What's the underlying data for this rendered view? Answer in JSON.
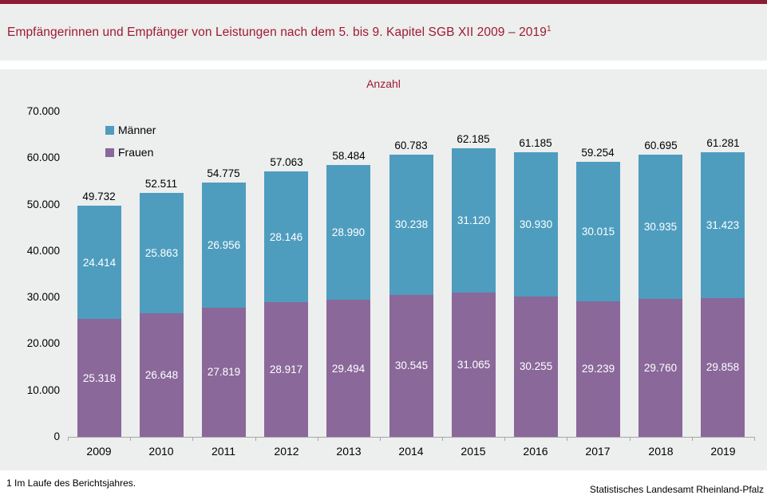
{
  "header": {
    "title": "Empfängerinnen und Empfänger von Leistungen nach dem 5. bis 9. Kapitel SGB XII 2009 – 2019",
    "title_superscript": "1",
    "accent_color": "#8b1c34",
    "title_color": "#9e1a31"
  },
  "chart_data": {
    "type": "bar",
    "stacked": true,
    "title": "Anzahl",
    "categories": [
      "2009",
      "2010",
      "2011",
      "2012",
      "2013",
      "2014",
      "2015",
      "2016",
      "2017",
      "2018",
      "2019"
    ],
    "series": [
      {
        "name": "Männer",
        "color": "#4e9dbf",
        "stack_position": "top",
        "values": [
          24414,
          25863,
          26956,
          28146,
          28990,
          30238,
          31120,
          30930,
          30015,
          30935,
          31423
        ]
      },
      {
        "name": "Frauen",
        "color": "#8a689a",
        "stack_position": "bottom",
        "values": [
          25318,
          26648,
          27819,
          28917,
          29494,
          30545,
          31065,
          30255,
          29239,
          29760,
          29858
        ]
      }
    ],
    "totals": [
      49732,
      52511,
      54775,
      57063,
      58484,
      60783,
      62185,
      61185,
      59254,
      60695,
      61281
    ],
    "ylim": [
      0,
      70000
    ],
    "ytick_step": 10000,
    "ytick_labels": [
      "0",
      "10.000",
      "20.000",
      "30.000",
      "40.000",
      "50.000",
      "60.000",
      "70.000"
    ],
    "grid": false,
    "legend_position": "top-left",
    "number_format": "de thousands separator (.)"
  },
  "footer": {
    "footnote": "1 Im Laufe des Berichtsjahres.",
    "source": "Statistisches Landesamt Rheinland-Pfalz"
  }
}
